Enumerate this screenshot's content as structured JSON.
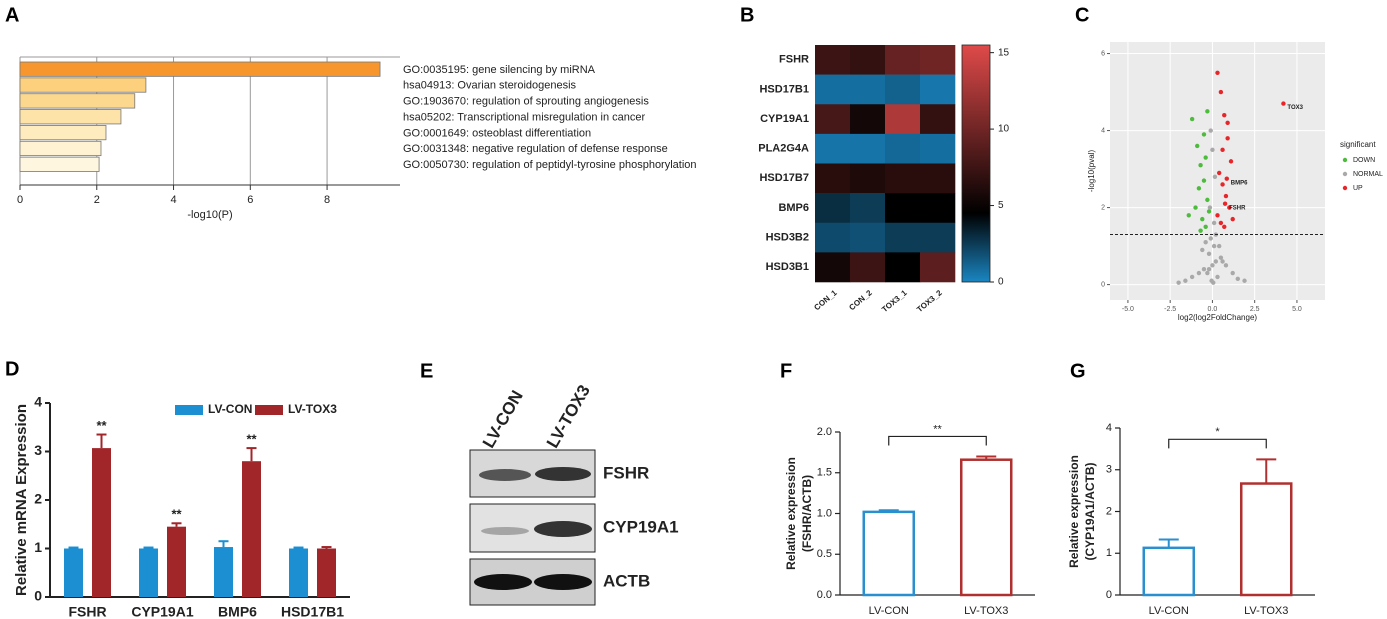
{
  "chart_data": [
    {
      "type": "hbar",
      "panel": "A",
      "categories": [
        "GO:0035195: gene silencing by miRNA",
        "hsa04913: Ovarian steroidogenesis",
        "GO:1903670: regulation of sprouting angiogenesis",
        "hsa05202: Transcriptional misregulation in cancer",
        "GO:0001649: osteoblast differentiation",
        "GO:0031348: negative regulation of defense response",
        "GO:0050730: regulation of peptidyl-tyrosine phosphorylation"
      ],
      "values": [
        9.38,
        3.28,
        2.99,
        2.63,
        2.24,
        2.11,
        2.06
      ],
      "colors": [
        "#f7962d",
        "#fcd07c",
        "#fcd88f",
        "#fde3a8",
        "#feecbf",
        "#fef2d2",
        "#fef6df"
      ],
      "xlabel": "-log10(P)",
      "xlim": [
        0,
        9.9
      ],
      "xticks": [
        0,
        2,
        4,
        6,
        8
      ],
      "grid": true
    },
    {
      "type": "heatmap",
      "panel": "B",
      "rows": [
        "FSHR",
        "HSD17B1",
        "CYP19A1",
        "PLA2G4A",
        "HSD17B7",
        "BMP6",
        "HSD3B2",
        "HSD3B1"
      ],
      "columns": [
        "CON_1",
        "CON_2",
        "TOX3_1",
        "TOX3_2"
      ],
      "values": [
        [
          7.5,
          7,
          9.5,
          10
        ],
        [
          0.8,
          0.8,
          1.2,
          0.5
        ],
        [
          8,
          5.5,
          13,
          7
        ],
        [
          0.6,
          0.6,
          1,
          0.8
        ],
        [
          6.5,
          6,
          6.5,
          6.5
        ],
        [
          3,
          2.5,
          4.5,
          4.5
        ],
        [
          2,
          1.8,
          2.5,
          2.5
        ],
        [
          5.5,
          7.5,
          4.5,
          9
        ]
      ],
      "zlim": [
        0,
        15.5
      ],
      "zticks": [
        0,
        5,
        10,
        15
      ],
      "colors": [
        "#1a86c2",
        "#000000",
        "#e04a4a"
      ],
      "color_stops": [
        0,
        4.5,
        15.5
      ]
    },
    {
      "type": "scatter",
      "panel": "C",
      "xlabel": "log2(log2FoldChange)",
      "ylabel": "-log10(pval)",
      "legend_title": "significant",
      "xlim": [
        -6.06,
        6.66
      ],
      "ylim": [
        -0.4,
        6.3
      ],
      "xticks": [
        {
          "value": -5,
          "label": "-5.0"
        },
        -2.5,
        {
          "value": 0,
          "label": "0.0"
        },
        2.5,
        {
          "value": 5,
          "label": "5.0"
        }
      ],
      "yticks": [
        0,
        2,
        4,
        6
      ],
      "threshold": 1.3,
      "grid": true,
      "series": [
        {
          "name": "DOWN",
          "color": "#4dbb3c",
          "x": [
            -1.2,
            -0.9,
            -0.7,
            -0.5,
            -0.3,
            -1.0,
            -0.6,
            -0.4,
            -0.8,
            -0.2,
            -1.4,
            -0.5,
            -0.3,
            -0.7,
            -0.4
          ],
          "y": [
            4.3,
            3.6,
            3.1,
            2.7,
            2.2,
            2.0,
            1.7,
            1.5,
            2.5,
            1.9,
            1.8,
            3.9,
            4.5,
            1.4,
            3.3
          ]
        },
        {
          "name": "NORMAL",
          "color": "#a9a9a9",
          "x": [
            -0.3,
            -0.2,
            -0.1,
            0,
            0.1,
            0.2,
            0.3,
            -0.5,
            0.5,
            -0.8,
            0.8,
            -1.2,
            1.2,
            -1.6,
            1.5,
            -0.4,
            0.4,
            -0.15,
            0.15,
            0,
            -0.6,
            0.6,
            -0.1,
            0.1,
            0.05,
            -0.05,
            -2.0,
            1.9,
            0.2,
            -0.2
          ],
          "y": [
            0.3,
            0.8,
            1.2,
            0.5,
            1.0,
            0.6,
            0.2,
            0.4,
            0.7,
            0.3,
            0.5,
            0.2,
            0.3,
            0.1,
            0.15,
            1.1,
            1.0,
            2.0,
            2.8,
            3.5,
            0.9,
            0.6,
            4.0,
            1.6,
            0.05,
            0.1,
            0.05,
            0.1,
            1.3,
            0.4
          ]
        },
        {
          "name": "UP",
          "color": "#e8262a",
          "x": [
            0.3,
            0.5,
            0.7,
            0.9,
            1.1,
            0.4,
            0.6,
            0.8,
            1.0,
            0.3,
            0.5,
            0.7,
            1.2,
            0.9,
            0.6,
            4.2,
            0.85,
            0.75
          ],
          "y": [
            5.5,
            5.0,
            4.4,
            3.8,
            3.2,
            2.9,
            2.6,
            2.3,
            2.0,
            1.8,
            1.6,
            1.5,
            1.7,
            4.2,
            3.5,
            4.7,
            2.75,
            2.1
          ],
          "labels": [
            null,
            null,
            null,
            null,
            null,
            null,
            null,
            null,
            null,
            null,
            null,
            null,
            null,
            null,
            null,
            "TOX3",
            "BMP6",
            "FSHR"
          ]
        }
      ]
    },
    {
      "type": "bar",
      "panel": "D",
      "ylabel": "Relative mRNA Expression",
      "categories": [
        "FSHR",
        "CYP19A1",
        "BMP6",
        "HSD17B1"
      ],
      "ylim": [
        0,
        4
      ],
      "yticks": [
        0,
        1,
        2,
        3,
        4
      ],
      "legend": "top",
      "series": [
        {
          "name": "LV-CON",
          "color": "#1b8fd2",
          "values": [
            1,
            1,
            1.03,
            1
          ],
          "errors": [
            0.02,
            0.02,
            0.12,
            0.02
          ]
        },
        {
          "name": "LV-TOX3",
          "color": "#a0262a",
          "values": [
            3.07,
            1.45,
            2.8,
            1.0
          ],
          "errors": [
            0.28,
            0.07,
            0.27,
            0.03
          ],
          "labels": [
            "**",
            "**",
            "**",
            null
          ]
        }
      ]
    },
    {
      "type": "bar",
      "panel": "F",
      "ylabel": [
        "Relative expression",
        "(FSHR/ACTB)"
      ],
      "categories": [
        "LV-CON",
        "LV-TOX3"
      ],
      "values": [
        1.02,
        1.66
      ],
      "errors": [
        0.02,
        0.04
      ],
      "colors": [
        "#2a8fcf",
        "#b03030"
      ],
      "hollow": true,
      "significance": "**",
      "ylim": [
        0,
        2
      ],
      "yticks": [
        {
          "value": 0,
          "label": "0.0"
        },
        0.5,
        {
          "value": 1,
          "label": "1.0"
        },
        1.5,
        {
          "value": 2,
          "label": "2.0"
        }
      ]
    },
    {
      "type": "bar",
      "panel": "G",
      "ylabel": [
        "Relative expression",
        "(CYP19A1/ACTB)"
      ],
      "categories": [
        "LV-CON",
        "LV-TOX3"
      ],
      "values": [
        1.13,
        2.67
      ],
      "errors": [
        0.2,
        0.58
      ],
      "colors": [
        "#2a8fcf",
        "#b03030"
      ],
      "hollow": true,
      "significance": "*",
      "ylim": [
        0,
        4
      ],
      "yticks": [
        0,
        1,
        2,
        3,
        4
      ]
    }
  ],
  "blot": {
    "panel": "E",
    "lanes": [
      "LV-CON",
      "LV-TOX3"
    ],
    "bands": [
      "FSHR",
      "CYP19A1",
      "ACTB"
    ]
  }
}
